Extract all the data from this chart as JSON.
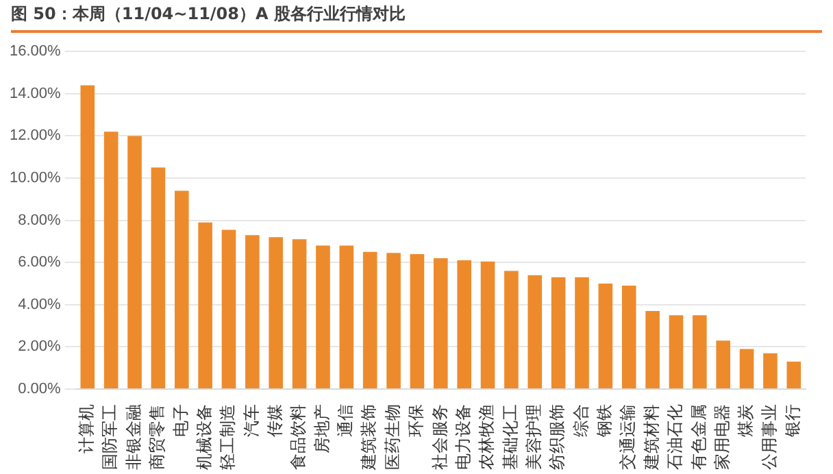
{
  "chart_data": {
    "type": "bar",
    "title": "图 50：本周（11/04~11/08）A 股各行业行情对比",
    "categories": [
      "计算机",
      "国防军工",
      "非银金融",
      "商贸零售",
      "电子",
      "机械设备",
      "轻工制造",
      "汽车",
      "传媒",
      "食品饮料",
      "房地产",
      "通信",
      "建筑装饰",
      "医药生物",
      "环保",
      "社会服务",
      "电力设备",
      "农林牧渔",
      "基础化工",
      "美容护理",
      "纺织服饰",
      "综合",
      "钢铁",
      "交通运输",
      "建筑材料",
      "石油石化",
      "有色金属",
      "家用电器",
      "煤炭",
      "公用事业",
      "银行"
    ],
    "values": [
      14.4,
      12.2,
      12.0,
      10.5,
      9.4,
      7.9,
      7.55,
      7.3,
      7.2,
      7.1,
      6.8,
      6.8,
      6.5,
      6.45,
      6.4,
      6.2,
      6.1,
      6.05,
      5.6,
      5.4,
      5.3,
      5.3,
      5.0,
      4.9,
      3.7,
      3.5,
      3.5,
      2.3,
      1.9,
      1.7,
      1.3
    ],
    "color": "#ed8b2c",
    "ylim": [
      0,
      16
    ],
    "yticks": [
      {
        "value": 0,
        "label": "0.00%"
      },
      {
        "value": 2,
        "label": "2.00%"
      },
      {
        "value": 4,
        "label": "4.00%"
      },
      {
        "value": 6,
        "label": "6.00%"
      },
      {
        "value": 8,
        "label": "8.00%"
      },
      {
        "value": 10,
        "label": "10.00%"
      },
      {
        "value": 12,
        "label": "12.00%"
      },
      {
        "value": 14,
        "label": "14.00%"
      },
      {
        "value": 16,
        "label": "16.00%"
      }
    ],
    "grid": "y"
  }
}
